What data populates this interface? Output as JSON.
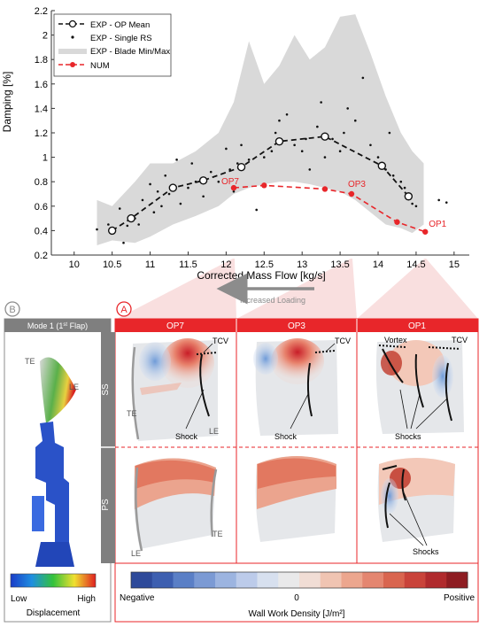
{
  "chart_data": {
    "type": "line",
    "xlabel": "Corrected Mass Flow [kg/s]",
    "ylabel": "Damping [%]",
    "xlim": [
      9.7,
      15.2
    ],
    "ylim": [
      0.2,
      2.2
    ],
    "xticks": [
      10,
      10.5,
      11,
      11.5,
      12,
      12.5,
      13,
      13.5,
      14,
      14.5,
      15
    ],
    "yticks": [
      0.2,
      0.4,
      0.6,
      0.8,
      1,
      1.2,
      1.4,
      1.6,
      1.8,
      2,
      2.2
    ],
    "grid": false,
    "legend_position": "top-left",
    "series": [
      {
        "name": "EXP - OP Mean",
        "style": "dashed-circle",
        "color": "#111111",
        "x": [
          10.5,
          10.75,
          11.3,
          11.7,
          12.2,
          12.7,
          13.3,
          14.05,
          14.4
        ],
        "y": [
          0.4,
          0.5,
          0.75,
          0.81,
          0.92,
          1.13,
          1.17,
          0.93,
          0.68
        ]
      },
      {
        "name": "EXP - Single RS",
        "style": "dots",
        "color": "#111111",
        "x": [
          10.3,
          10.45,
          10.5,
          10.6,
          10.65,
          10.7,
          10.8,
          10.85,
          10.9,
          11.0,
          11.05,
          11.1,
          11.15,
          11.2,
          11.25,
          11.35,
          11.4,
          11.5,
          11.55,
          11.6,
          11.7,
          11.8,
          11.9,
          12.0,
          12.05,
          12.1,
          12.15,
          12.2,
          12.3,
          12.4,
          12.5,
          12.6,
          12.65,
          12.7,
          12.8,
          12.9,
          13.0,
          13.05,
          13.1,
          13.2,
          13.25,
          13.3,
          13.4,
          13.5,
          13.55,
          13.6,
          13.7,
          13.8,
          13.9,
          14.0,
          14.1,
          14.15,
          14.2,
          14.3,
          14.35,
          14.4,
          14.45,
          14.5,
          14.8,
          14.9
        ],
        "y": [
          0.41,
          0.45,
          0.38,
          0.58,
          0.3,
          0.44,
          0.5,
          0.45,
          0.65,
          0.78,
          0.55,
          0.72,
          0.6,
          0.85,
          0.7,
          0.98,
          0.62,
          0.75,
          0.95,
          0.8,
          0.68,
          0.88,
          0.8,
          1.07,
          0.9,
          0.72,
          0.95,
          1.1,
          0.98,
          0.57,
          1.0,
          1.05,
          1.2,
          1.3,
          1.35,
          1.1,
          1.05,
          1.15,
          0.9,
          1.25,
          1.45,
          1.0,
          1.15,
          1.05,
          1.2,
          1.4,
          1.3,
          1.65,
          1.1,
          1.0,
          0.9,
          1.2,
          0.85,
          0.8,
          0.75,
          0.7,
          0.62,
          0.6,
          0.65,
          0.63
        ]
      },
      {
        "name": "EXP - Blade Min/Max",
        "style": "band",
        "color": "#d9d9d9",
        "x": [
          10.3,
          10.5,
          10.8,
          11.0,
          11.3,
          11.6,
          11.9,
          12.1,
          12.3,
          12.5,
          12.7,
          12.9,
          13.1,
          13.3,
          13.5,
          13.7,
          13.9,
          14.1,
          14.3,
          14.45,
          14.6
        ],
        "upper": [
          0.65,
          0.6,
          0.8,
          0.95,
          0.95,
          1.05,
          1.2,
          1.45,
          1.95,
          1.6,
          1.75,
          2.0,
          1.8,
          1.9,
          2.15,
          2.17,
          1.85,
          1.5,
          1.2,
          1.05,
          0.95
        ],
        "lower": [
          0.28,
          0.32,
          0.3,
          0.35,
          0.45,
          0.52,
          0.6,
          0.7,
          0.75,
          0.78,
          0.8,
          0.8,
          0.78,
          0.75,
          0.72,
          0.65,
          0.55,
          0.45,
          0.42,
          0.38,
          0.45
        ]
      },
      {
        "name": "NUM",
        "style": "dashed-red",
        "color": "#e8262a",
        "x": [
          12.1,
          12.5,
          13.3,
          13.65,
          14.25,
          14.62
        ],
        "y": [
          0.75,
          0.77,
          0.74,
          0.7,
          0.47,
          0.39
        ]
      }
    ],
    "annotations": [
      {
        "text": "OP7",
        "x": 12.1,
        "y": 0.75
      },
      {
        "text": "OP3",
        "x": 13.65,
        "y": 0.7
      },
      {
        "text": "OP1",
        "x": 14.62,
        "y": 0.39
      }
    ]
  },
  "arrow_text": "Increased Loading",
  "panel_b": {
    "marker": "B",
    "title": "Mode 1 (1st Flap)",
    "title_main": "Mode 1 (1",
    "title_sup": "st",
    "title_end": " Flap)",
    "te": "TE",
    "le": "LE",
    "scale_low": "Low",
    "scale_high": "High",
    "scale_title": "Displacement"
  },
  "panel_a": {
    "marker": "A",
    "columns": [
      "OP7",
      "OP3",
      "OP1"
    ],
    "rows": [
      "SS",
      "PS"
    ],
    "labels": {
      "tcv": "TCV",
      "vortex": "Vortex",
      "shock": "Shock",
      "shocks": "Shocks",
      "te": "TE",
      "le": "LE"
    },
    "colorbar": {
      "negative": "Negative",
      "zero": "0",
      "positive": "Positive",
      "title": "Wall Work Density [J/m²]"
    }
  },
  "colors": {
    "accent_red": "#e8262a",
    "band_gray": "#d9d9d9",
    "header_gray": "#7f7f7f"
  }
}
